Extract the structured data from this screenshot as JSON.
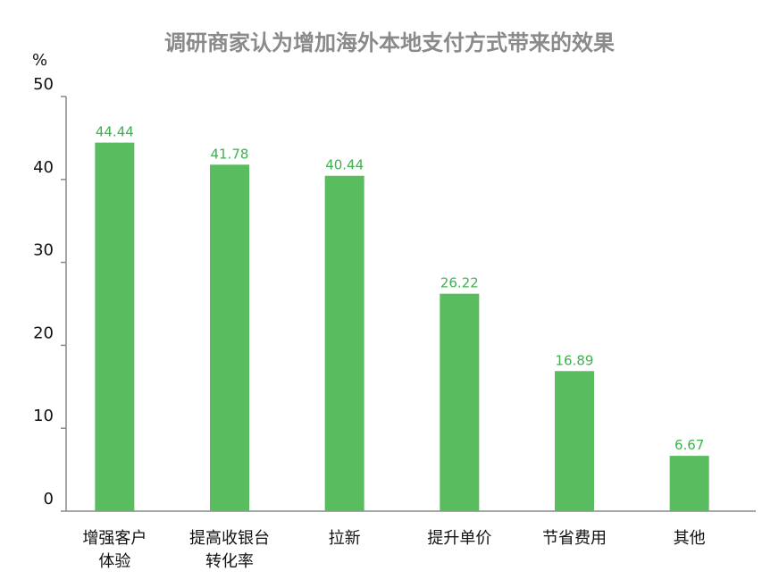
{
  "chart_data": {
    "type": "bar",
    "title": "调研商家认为增加海外本地支付方式带来的效果",
    "ylabel": "%",
    "ylim": [
      0,
      50
    ],
    "yticks": [
      0,
      10,
      20,
      30,
      40,
      50
    ],
    "categories": [
      [
        "增强客户",
        "体验"
      ],
      [
        "提高收银台",
        "转化率"
      ],
      [
        "拉新"
      ],
      [
        "提升单价"
      ],
      [
        "节省费用"
      ],
      [
        "其他"
      ]
    ],
    "values": [
      44.44,
      41.78,
      40.44,
      26.22,
      16.89,
      6.67
    ],
    "value_labels": [
      "44.44",
      "41.78",
      "40.44",
      "26.22",
      "16.89",
      "6.67"
    ],
    "bar_color": "#59bd5f",
    "label_color": "#3fb04f",
    "axis_color": "#888888",
    "grid": false,
    "legend": "none"
  }
}
